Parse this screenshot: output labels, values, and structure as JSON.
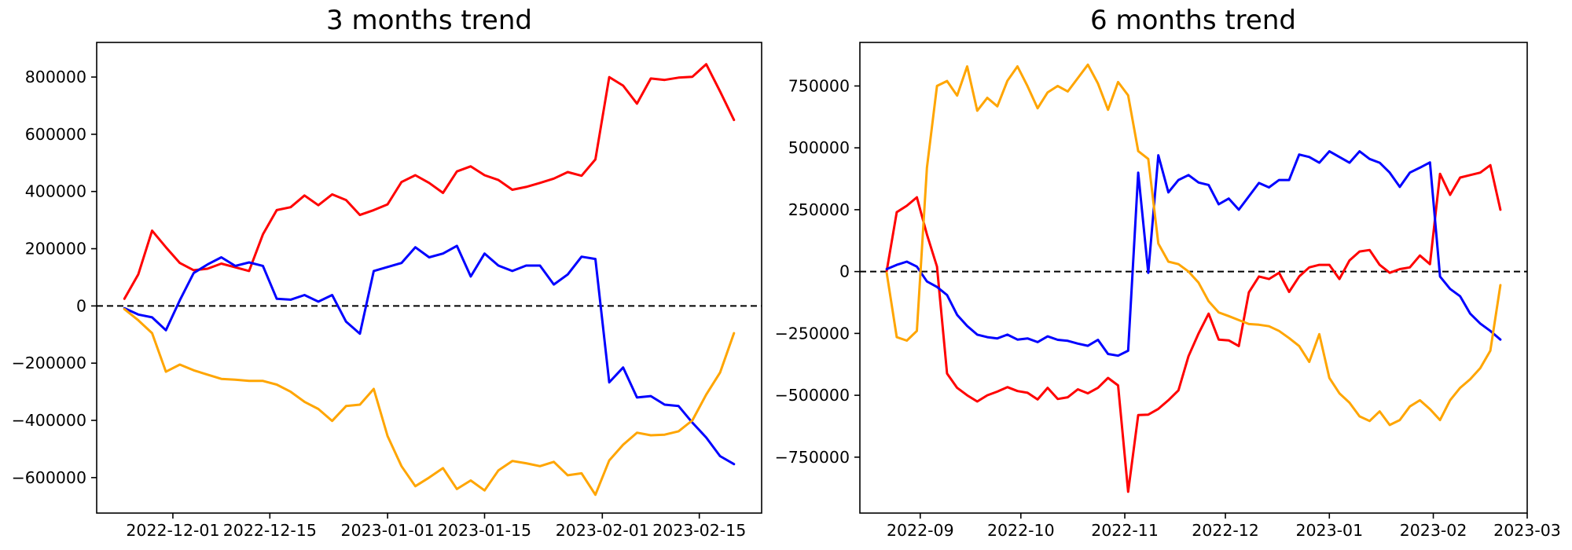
{
  "figure": {
    "background": "#ffffff",
    "axis_color": "#000000",
    "zero_line_color": "#000000"
  },
  "chart_data": [
    {
      "type": "line",
      "title": "3 months trend",
      "xlabel": "",
      "ylabel": "",
      "grid": false,
      "legend": null,
      "zero_line": true,
      "xlim": [
        "2022-11-20",
        "2023-02-24"
      ],
      "ylim": [
        -724000,
        921000
      ],
      "yticks": [
        800000,
        600000,
        400000,
        200000,
        0,
        -200000,
        -400000,
        -600000
      ],
      "ytick_labels": [
        "800000",
        "600000",
        "400000",
        "200000",
        "0",
        "−200000",
        "−400000",
        "−600000"
      ],
      "xticks": [
        "2022-12-01",
        "2022-12-15",
        "2023-01-01",
        "2023-01-15",
        "2023-02-01",
        "2023-02-15"
      ],
      "xtick_labels": [
        "2022-12-01",
        "2022-12-15",
        "2023-01-01",
        "2023-01-15",
        "2023-02-01",
        "2023-02-15"
      ],
      "x": [
        "2022-11-24",
        "2022-11-26",
        "2022-11-28",
        "2022-11-30",
        "2022-12-02",
        "2022-12-04",
        "2022-12-06",
        "2022-12-08",
        "2022-12-10",
        "2022-12-12",
        "2022-12-14",
        "2022-12-16",
        "2022-12-18",
        "2022-12-20",
        "2022-12-22",
        "2022-12-24",
        "2022-12-26",
        "2022-12-28",
        "2022-12-30",
        "2023-01-01",
        "2023-01-03",
        "2023-01-05",
        "2023-01-07",
        "2023-01-09",
        "2023-01-11",
        "2023-01-13",
        "2023-01-15",
        "2023-01-17",
        "2023-01-19",
        "2023-01-21",
        "2023-01-23",
        "2023-01-25",
        "2023-01-27",
        "2023-01-29",
        "2023-01-31",
        "2023-02-02",
        "2023-02-04",
        "2023-02-06",
        "2023-02-08",
        "2023-02-10",
        "2023-02-12",
        "2023-02-14",
        "2023-02-16",
        "2023-02-18",
        "2023-02-20"
      ],
      "series": [
        {
          "name": "red",
          "color": "#ff0000",
          "values": [
            25000,
            110000,
            263000,
            205000,
            150000,
            125000,
            130000,
            148000,
            135000,
            122000,
            250000,
            335000,
            345000,
            386000,
            352000,
            390000,
            370000,
            318000,
            335000,
            355000,
            433000,
            457000,
            430000,
            395000,
            470000,
            488000,
            457000,
            440000,
            406000,
            416000,
            430000,
            445000,
            468000,
            455000,
            512000,
            800000,
            770000,
            707000,
            795000,
            790000,
            798000,
            801000,
            845000,
            750000,
            650000
          ]
        },
        {
          "name": "blue",
          "color": "#0000ff",
          "values": [
            -8000,
            -30000,
            -40000,
            -85000,
            20000,
            115000,
            145000,
            170000,
            140000,
            152000,
            140000,
            25000,
            22000,
            38000,
            15000,
            38000,
            -55000,
            -97000,
            122000,
            136000,
            150000,
            205000,
            170000,
            183000,
            210000,
            103000,
            183000,
            141000,
            122000,
            141000,
            141000,
            75000,
            110000,
            172000,
            164000,
            -267000,
            -215000,
            -320000,
            -315000,
            -345000,
            -350000,
            -408000,
            -460000,
            -525000,
            -553000
          ]
        },
        {
          "name": "orange",
          "color": "#ffa500",
          "values": [
            -11000,
            -50000,
            -95000,
            -230000,
            -205000,
            -225000,
            -240000,
            -255000,
            -258000,
            -262000,
            -262000,
            -275000,
            -300000,
            -335000,
            -360000,
            -402000,
            -350000,
            -345000,
            -290000,
            -455000,
            -560000,
            -630000,
            -600000,
            -567000,
            -640000,
            -610000,
            -645000,
            -575000,
            -542000,
            -550000,
            -560000,
            -545000,
            -592000,
            -585000,
            -660000,
            -540000,
            -485000,
            -443000,
            -452000,
            -450000,
            -438000,
            -400000,
            -310000,
            -233000,
            -95000
          ]
        }
      ]
    },
    {
      "type": "line",
      "title": "6 months trend",
      "xlabel": "",
      "ylabel": "",
      "grid": false,
      "legend": null,
      "zero_line": true,
      "xlim": [
        "2022-08-14",
        "2023-03-01"
      ],
      "ylim": [
        -976000,
        926000
      ],
      "yticks": [
        750000,
        500000,
        250000,
        0,
        -250000,
        -500000,
        -750000
      ],
      "ytick_labels": [
        "750000",
        "500000",
        "250000",
        "0",
        "−250000",
        "−500000",
        "−750000"
      ],
      "xticks": [
        "2022-09-01",
        "2022-10-01",
        "2022-11-01",
        "2022-12-01",
        "2023-01-01",
        "2023-02-01",
        "2023-03-01"
      ],
      "xtick_labels": [
        "2022-09",
        "2022-10",
        "2022-11",
        "2022-12",
        "2023-01",
        "2023-02",
        "2023-03"
      ],
      "x": [
        "2022-08-22",
        "2022-08-25",
        "2022-08-28",
        "2022-08-31",
        "2022-09-03",
        "2022-09-06",
        "2022-09-09",
        "2022-09-12",
        "2022-09-15",
        "2022-09-18",
        "2022-09-21",
        "2022-09-24",
        "2022-09-27",
        "2022-09-30",
        "2022-10-03",
        "2022-10-06",
        "2022-10-09",
        "2022-10-12",
        "2022-10-15",
        "2022-10-18",
        "2022-10-21",
        "2022-10-24",
        "2022-10-27",
        "2022-10-30",
        "2022-11-02",
        "2022-11-05",
        "2022-11-08",
        "2022-11-11",
        "2022-11-14",
        "2022-11-17",
        "2022-11-20",
        "2022-11-23",
        "2022-11-26",
        "2022-11-29",
        "2022-12-02",
        "2022-12-05",
        "2022-12-08",
        "2022-12-11",
        "2022-12-14",
        "2022-12-17",
        "2022-12-20",
        "2022-12-23",
        "2022-12-26",
        "2022-12-29",
        "2023-01-01",
        "2023-01-04",
        "2023-01-07",
        "2023-01-10",
        "2023-01-13",
        "2023-01-16",
        "2023-01-19",
        "2023-01-22",
        "2023-01-25",
        "2023-01-28",
        "2023-01-31",
        "2023-02-03",
        "2023-02-06",
        "2023-02-09",
        "2023-02-12",
        "2023-02-15",
        "2023-02-18",
        "2023-02-21"
      ],
      "series": [
        {
          "name": "red",
          "color": "#ff0000",
          "values": [
            2000,
            240000,
            266000,
            300000,
            150000,
            20000,
            -412000,
            -470000,
            -500000,
            -525000,
            -500000,
            -485000,
            -467000,
            -483000,
            -490000,
            -517000,
            -470000,
            -515000,
            -508000,
            -476000,
            -492000,
            -470000,
            -430000,
            -460000,
            -890000,
            -580000,
            -578000,
            -555000,
            -520000,
            -480000,
            -342000,
            -250000,
            -170000,
            -275000,
            -278000,
            -301000,
            -84000,
            -20000,
            -30000,
            -5000,
            -82000,
            -20000,
            17000,
            27000,
            27000,
            -30000,
            45000,
            81000,
            87000,
            27000,
            -5000,
            10000,
            17000,
            65000,
            30000,
            395000,
            310000,
            380000,
            390000,
            400000,
            430000,
            250000
          ]
        },
        {
          "name": "blue",
          "color": "#0000ff",
          "values": [
            10000,
            27000,
            40000,
            20000,
            -40000,
            -62000,
            -95000,
            -175000,
            -220000,
            -255000,
            -265000,
            -270000,
            -255000,
            -275000,
            -270000,
            -285000,
            -262000,
            -276000,
            -280000,
            -291000,
            -300000,
            -276000,
            -333000,
            -340000,
            -320000,
            400000,
            -5000,
            470000,
            320000,
            370000,
            390000,
            360000,
            350000,
            272000,
            295000,
            250000,
            304000,
            358000,
            340000,
            370000,
            370000,
            473000,
            463000,
            440000,
            486000,
            463000,
            440000,
            486000,
            455000,
            440000,
            400000,
            342000,
            400000,
            420000,
            441000,
            -20000,
            -70000,
            -100000,
            -170000,
            -210000,
            -240000,
            -275000
          ]
        },
        {
          "name": "orange",
          "color": "#ffa500",
          "values": [
            -5000,
            -265000,
            -279000,
            -240000,
            420000,
            750000,
            770000,
            711000,
            829000,
            650000,
            702000,
            668000,
            771000,
            829000,
            749000,
            660000,
            724000,
            750000,
            728000,
            782000,
            836000,
            760000,
            654000,
            766000,
            712000,
            487000,
            455000,
            113000,
            40000,
            30000,
            0,
            -45000,
            -120000,
            -165000,
            -180000,
            -196000,
            -212000,
            -215000,
            -221000,
            -240000,
            -269000,
            -301000,
            -365000,
            -253000,
            -430000,
            -492000,
            -530000,
            -585000,
            -604000,
            -565000,
            -620000,
            -600000,
            -545000,
            -520000,
            -556000,
            -600000,
            -520000,
            -470000,
            -435000,
            -390000,
            -320000,
            -55000
          ]
        }
      ]
    }
  ]
}
